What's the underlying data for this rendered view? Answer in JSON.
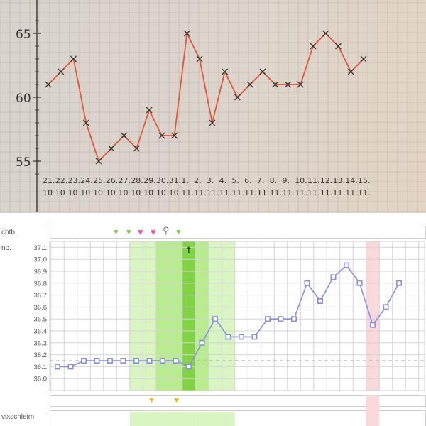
{
  "handwritten_chart": {
    "y_ticks": [
      "55",
      "60",
      "65"
    ],
    "date_days": [
      "21.",
      "22.",
      "23.",
      "24.",
      "25.",
      "26.",
      "27.",
      "28.",
      "29.",
      "30.",
      "31.",
      "1.",
      "2.",
      "3.",
      "4.",
      "5.",
      "6.",
      "7.",
      "8.",
      "9.",
      "10.",
      "11.",
      "12.",
      "13.",
      "14.",
      "15."
    ],
    "date_months": [
      "10",
      "10",
      "10",
      "10",
      "10",
      "10",
      "10",
      "10",
      "10",
      "10",
      "10",
      "11.",
      "11.",
      "11.",
      "11.",
      "11.",
      "11.",
      "11.",
      "11.",
      "11.",
      "11.",
      "11.",
      "11.",
      "11.",
      "11.",
      "11."
    ]
  },
  "chart_data": [
    {
      "type": "line",
      "x": [
        "21.10",
        "22.10",
        "23.10",
        "24.10",
        "25.10",
        "26.10",
        "27.10",
        "28.10",
        "29.10",
        "30.10",
        "31.10",
        "1.11",
        "2.11",
        "3.11",
        "4.11",
        "5.11",
        "6.11",
        "7.11",
        "8.11",
        "9.11",
        "10.11",
        "11.11",
        "12.11",
        "13.11",
        "14.11",
        "15.11"
      ],
      "series": [
        {
          "values": [
            61,
            62,
            63,
            58,
            55,
            56,
            57,
            56,
            59,
            57,
            57,
            65,
            63,
            58,
            62,
            60,
            61,
            62,
            61,
            61,
            61,
            64,
            65,
            64,
            62,
            63
          ]
        }
      ],
      "ylim": [
        54,
        66
      ],
      "yticks": [
        55,
        60,
        65
      ],
      "grid": true,
      "color": "#e0563a"
    },
    {
      "type": "line",
      "series": [
        {
          "values": [
            36.1,
            36.1,
            36.15,
            36.15,
            36.15,
            36.15,
            36.15,
            36.15,
            36.15,
            36.15,
            36.1,
            36.3,
            36.5,
            36.35,
            36.35,
            36.35,
            36.5,
            36.5,
            36.5,
            36.8,
            36.65,
            36.85,
            36.95,
            36.8,
            36.45,
            36.6,
            36.8
          ]
        }
      ],
      "ylim": [
        35.9,
        37.15
      ],
      "yticks": [
        "36.0",
        "36.1",
        "36.2",
        "36.3",
        "36.4",
        "36.5",
        "36.6",
        "36.7",
        "36.8",
        "36.9",
        "37.0",
        "37.1"
      ],
      "coverline": 36.15,
      "grid": true,
      "color": "#8a8ee0",
      "shading": {
        "fertile_light": [
          6,
          13
        ],
        "fertile_medium": [
          8,
          11
        ],
        "ovulation": [
          10
        ],
        "period": [
          24
        ]
      }
    }
  ],
  "app_chart": {
    "row_labels": {
      "markers": "chtb.",
      "temp": "np.",
      "cervix": "vixschleim",
      "blank": ""
    },
    "markers_icons": [
      "green-heart",
      "green-heart",
      "pink-heart",
      "pink-heart",
      "key",
      "green-heart"
    ],
    "ovulation_marker": "↑",
    "cervix_icons": [
      "yellow-heart",
      "yellow-heart"
    ],
    "colors": {
      "fertile_light": "#d9f5c2",
      "fertile_medium": "#b9ec8f",
      "ovulation": "#7fd444",
      "period": "#f9d9dc",
      "line": "#8a8ee0",
      "coverline": "#b8b8b8"
    }
  }
}
